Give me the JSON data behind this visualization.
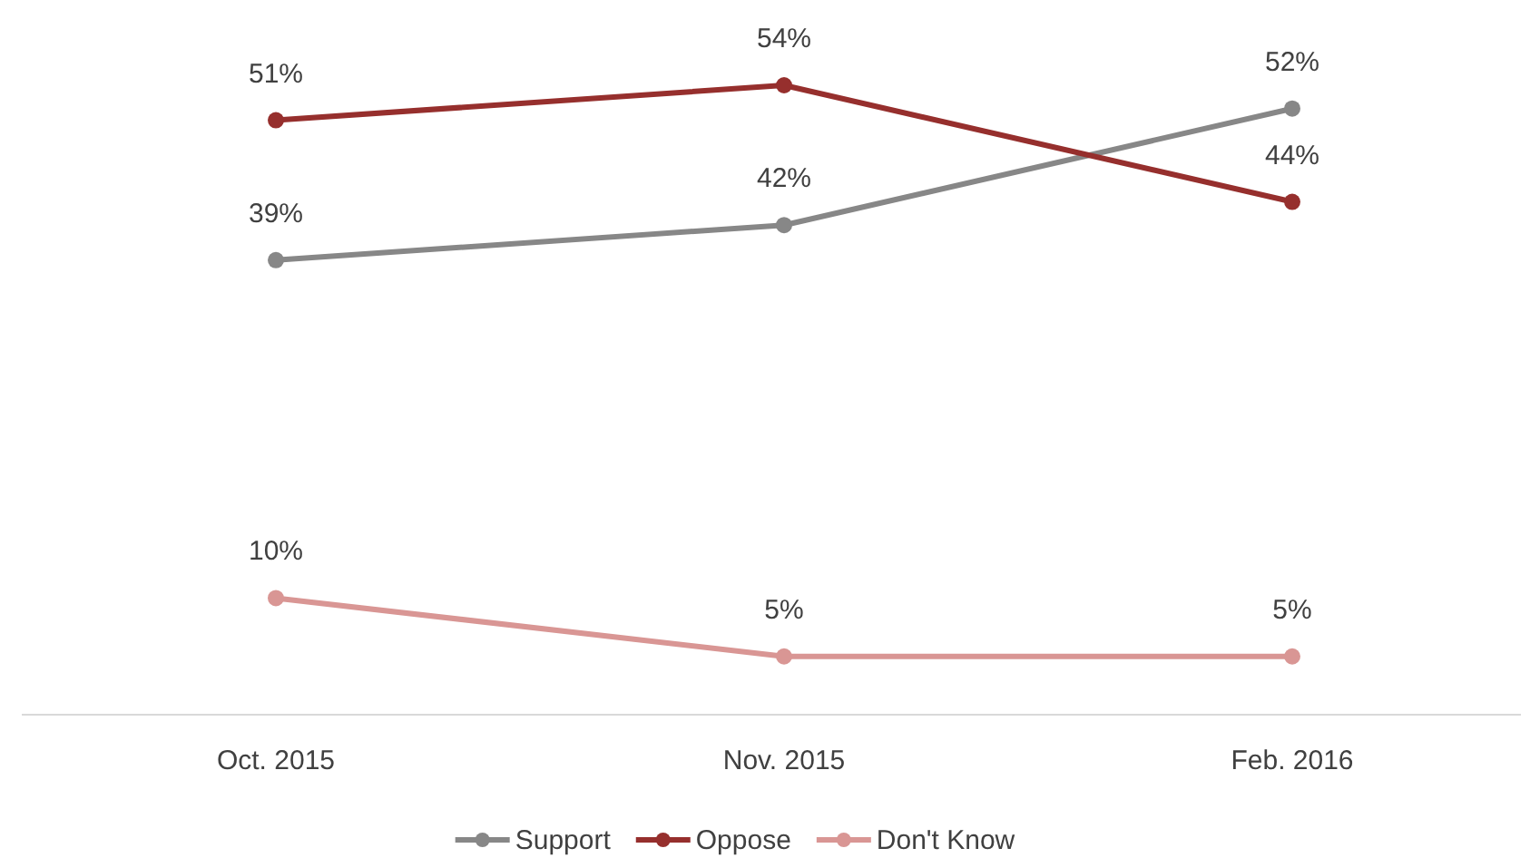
{
  "chart_data": {
    "type": "line",
    "categories": [
      "Oct. 2015",
      "Nov. 2015",
      "Feb. 2016"
    ],
    "series": [
      {
        "name": "Support",
        "color": "#878787",
        "values": [
          39,
          42,
          52
        ],
        "value_labels": [
          "39%",
          "42%",
          "52%"
        ]
      },
      {
        "name": "Oppose",
        "color": "#962f2d",
        "values": [
          51,
          54,
          44
        ],
        "value_labels": [
          "51%",
          "54%",
          "44%"
        ]
      },
      {
        "name": "Don't Know",
        "color": "#d99694",
        "values": [
          10,
          5,
          5
        ],
        "value_labels": [
          "10%",
          "5%",
          "5%"
        ]
      }
    ],
    "legend": "bottom",
    "marker": "circle",
    "line_style": "solid",
    "tick_labels": "x"
  }
}
